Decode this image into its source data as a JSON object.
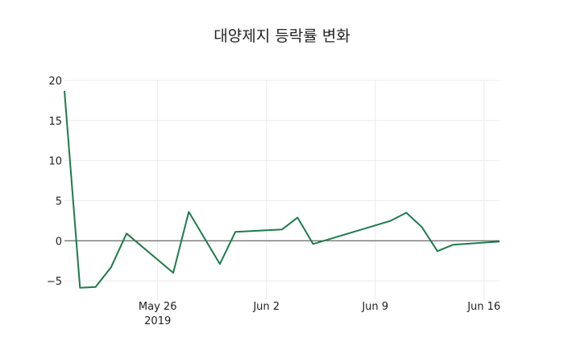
{
  "chart_data": {
    "type": "line",
    "title": "대양제지 등락률 변화",
    "xlabel": "",
    "ylabel": "",
    "ylim": [
      -7.4,
      20
    ],
    "y_ticks": [
      -5,
      0,
      5,
      10,
      15,
      20
    ],
    "x_ticks": [
      {
        "date": "2019-05-26",
        "label": "May 26",
        "sublabel": "2019"
      },
      {
        "date": "2019-06-02",
        "label": "Jun 2"
      },
      {
        "date": "2019-06-09",
        "label": "Jun 9"
      },
      {
        "date": "2019-06-16",
        "label": "Jun 16"
      }
    ],
    "grid": true,
    "line_color": "#1e7b4a",
    "series": [
      {
        "name": "등락률",
        "x": [
          "2019-05-20",
          "2019-05-21",
          "2019-05-22",
          "2019-05-23",
          "2019-05-24",
          "2019-05-27",
          "2019-05-28",
          "2019-05-30",
          "2019-05-31",
          "2019-06-03",
          "2019-06-04",
          "2019-06-05",
          "2019-06-10",
          "2019-06-11",
          "2019-06-12",
          "2019-06-13",
          "2019-06-14",
          "2019-06-17"
        ],
        "values": [
          18.7,
          -5.86,
          -5.76,
          -3.3,
          0.9,
          -4.0,
          3.6,
          -2.9,
          1.1,
          1.4,
          2.9,
          -0.4,
          2.5,
          3.5,
          1.7,
          -1.3,
          -0.5,
          -0.1
        ]
      }
    ]
  }
}
